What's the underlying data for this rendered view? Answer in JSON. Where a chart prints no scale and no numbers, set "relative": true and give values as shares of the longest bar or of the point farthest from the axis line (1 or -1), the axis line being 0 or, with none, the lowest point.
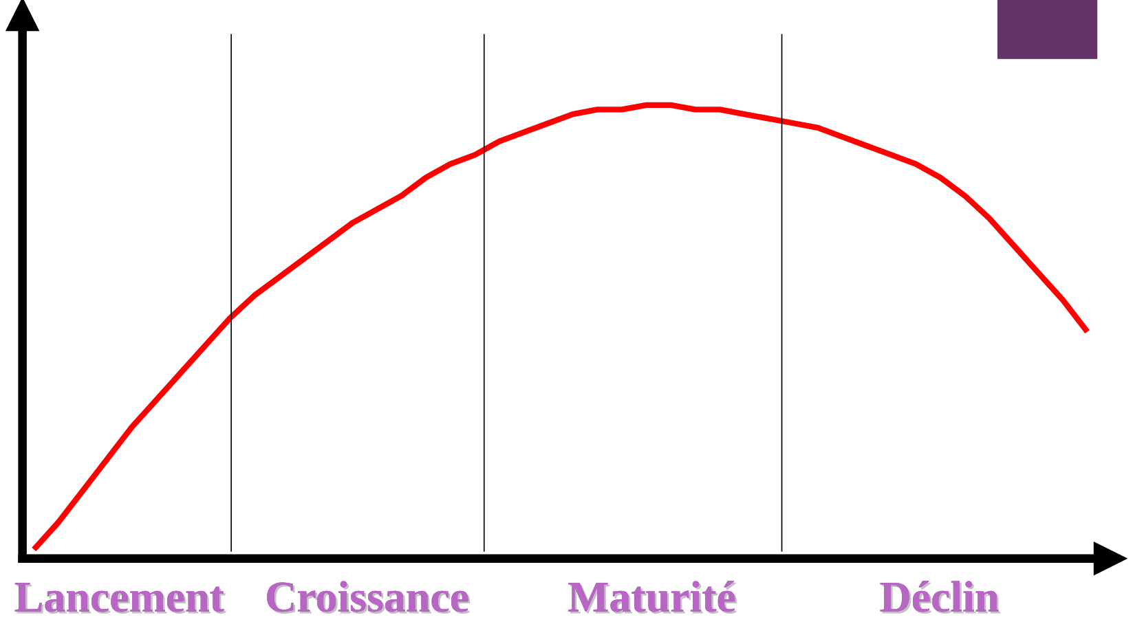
{
  "chart_data": {
    "type": "line",
    "relative": true,
    "marker": "none",
    "line_style": "solid",
    "categories": [
      null,
      null,
      null,
      null,
      null,
      null,
      null,
      null,
      null,
      null,
      null,
      null,
      null,
      null,
      null,
      null,
      null,
      null,
      null,
      null,
      null,
      null,
      null,
      null,
      null,
      null,
      null,
      null,
      null,
      null,
      null,
      null,
      null,
      null,
      null,
      null,
      null,
      null,
      null,
      null,
      null,
      null,
      null,
      null
    ],
    "series": [
      {
        "color": "#ff0000",
        "values": [
          0.02,
          0.08,
          0.15,
          0.22,
          0.29,
          0.35,
          0.41,
          0.47,
          0.53,
          0.58,
          0.62,
          0.66,
          0.7,
          0.74,
          0.77,
          0.8,
          0.84,
          0.87,
          0.89,
          0.92,
          0.94,
          0.96,
          0.98,
          0.99,
          0.99,
          1.0,
          1.0,
          0.99,
          0.99,
          0.98,
          0.97,
          0.96,
          0.95,
          0.93,
          0.91,
          0.89,
          0.87,
          0.84,
          0.8,
          0.75,
          0.69,
          0.63,
          0.57,
          0.5
        ]
      }
    ],
    "annotations": [
      "Lancement",
      "Croissance",
      "Maturité",
      "Déclin"
    ]
  }
}
